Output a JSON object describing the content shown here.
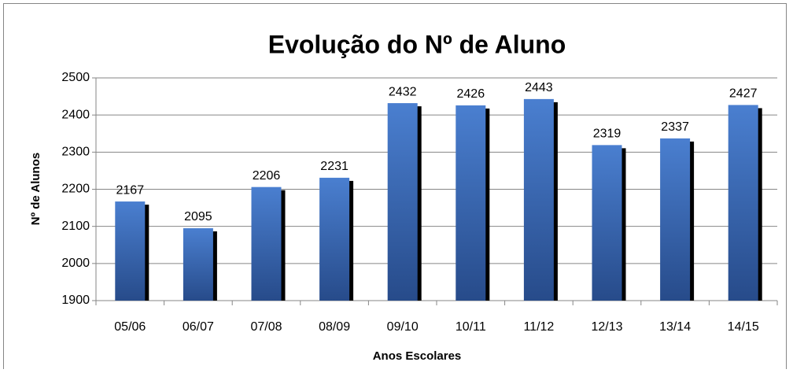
{
  "chart_data": {
    "type": "bar",
    "title": "Evolução do Nº de Aluno",
    "xlabel": "Anos Escolares",
    "ylabel": "Nº de Alunos",
    "categories": [
      "05/06",
      "06/07",
      "07/08",
      "08/09",
      "09/10",
      "10/11",
      "11/12",
      "12/13",
      "13/14",
      "14/15"
    ],
    "values": [
      2167,
      2095,
      2206,
      2231,
      2432,
      2426,
      2443,
      2319,
      2337,
      2427
    ],
    "color": "#4a7fd0",
    "ylim": [
      1900,
      2500
    ],
    "yticks": [
      1900,
      2000,
      2100,
      2200,
      2300,
      2400,
      2500
    ],
    "grid": true
  }
}
